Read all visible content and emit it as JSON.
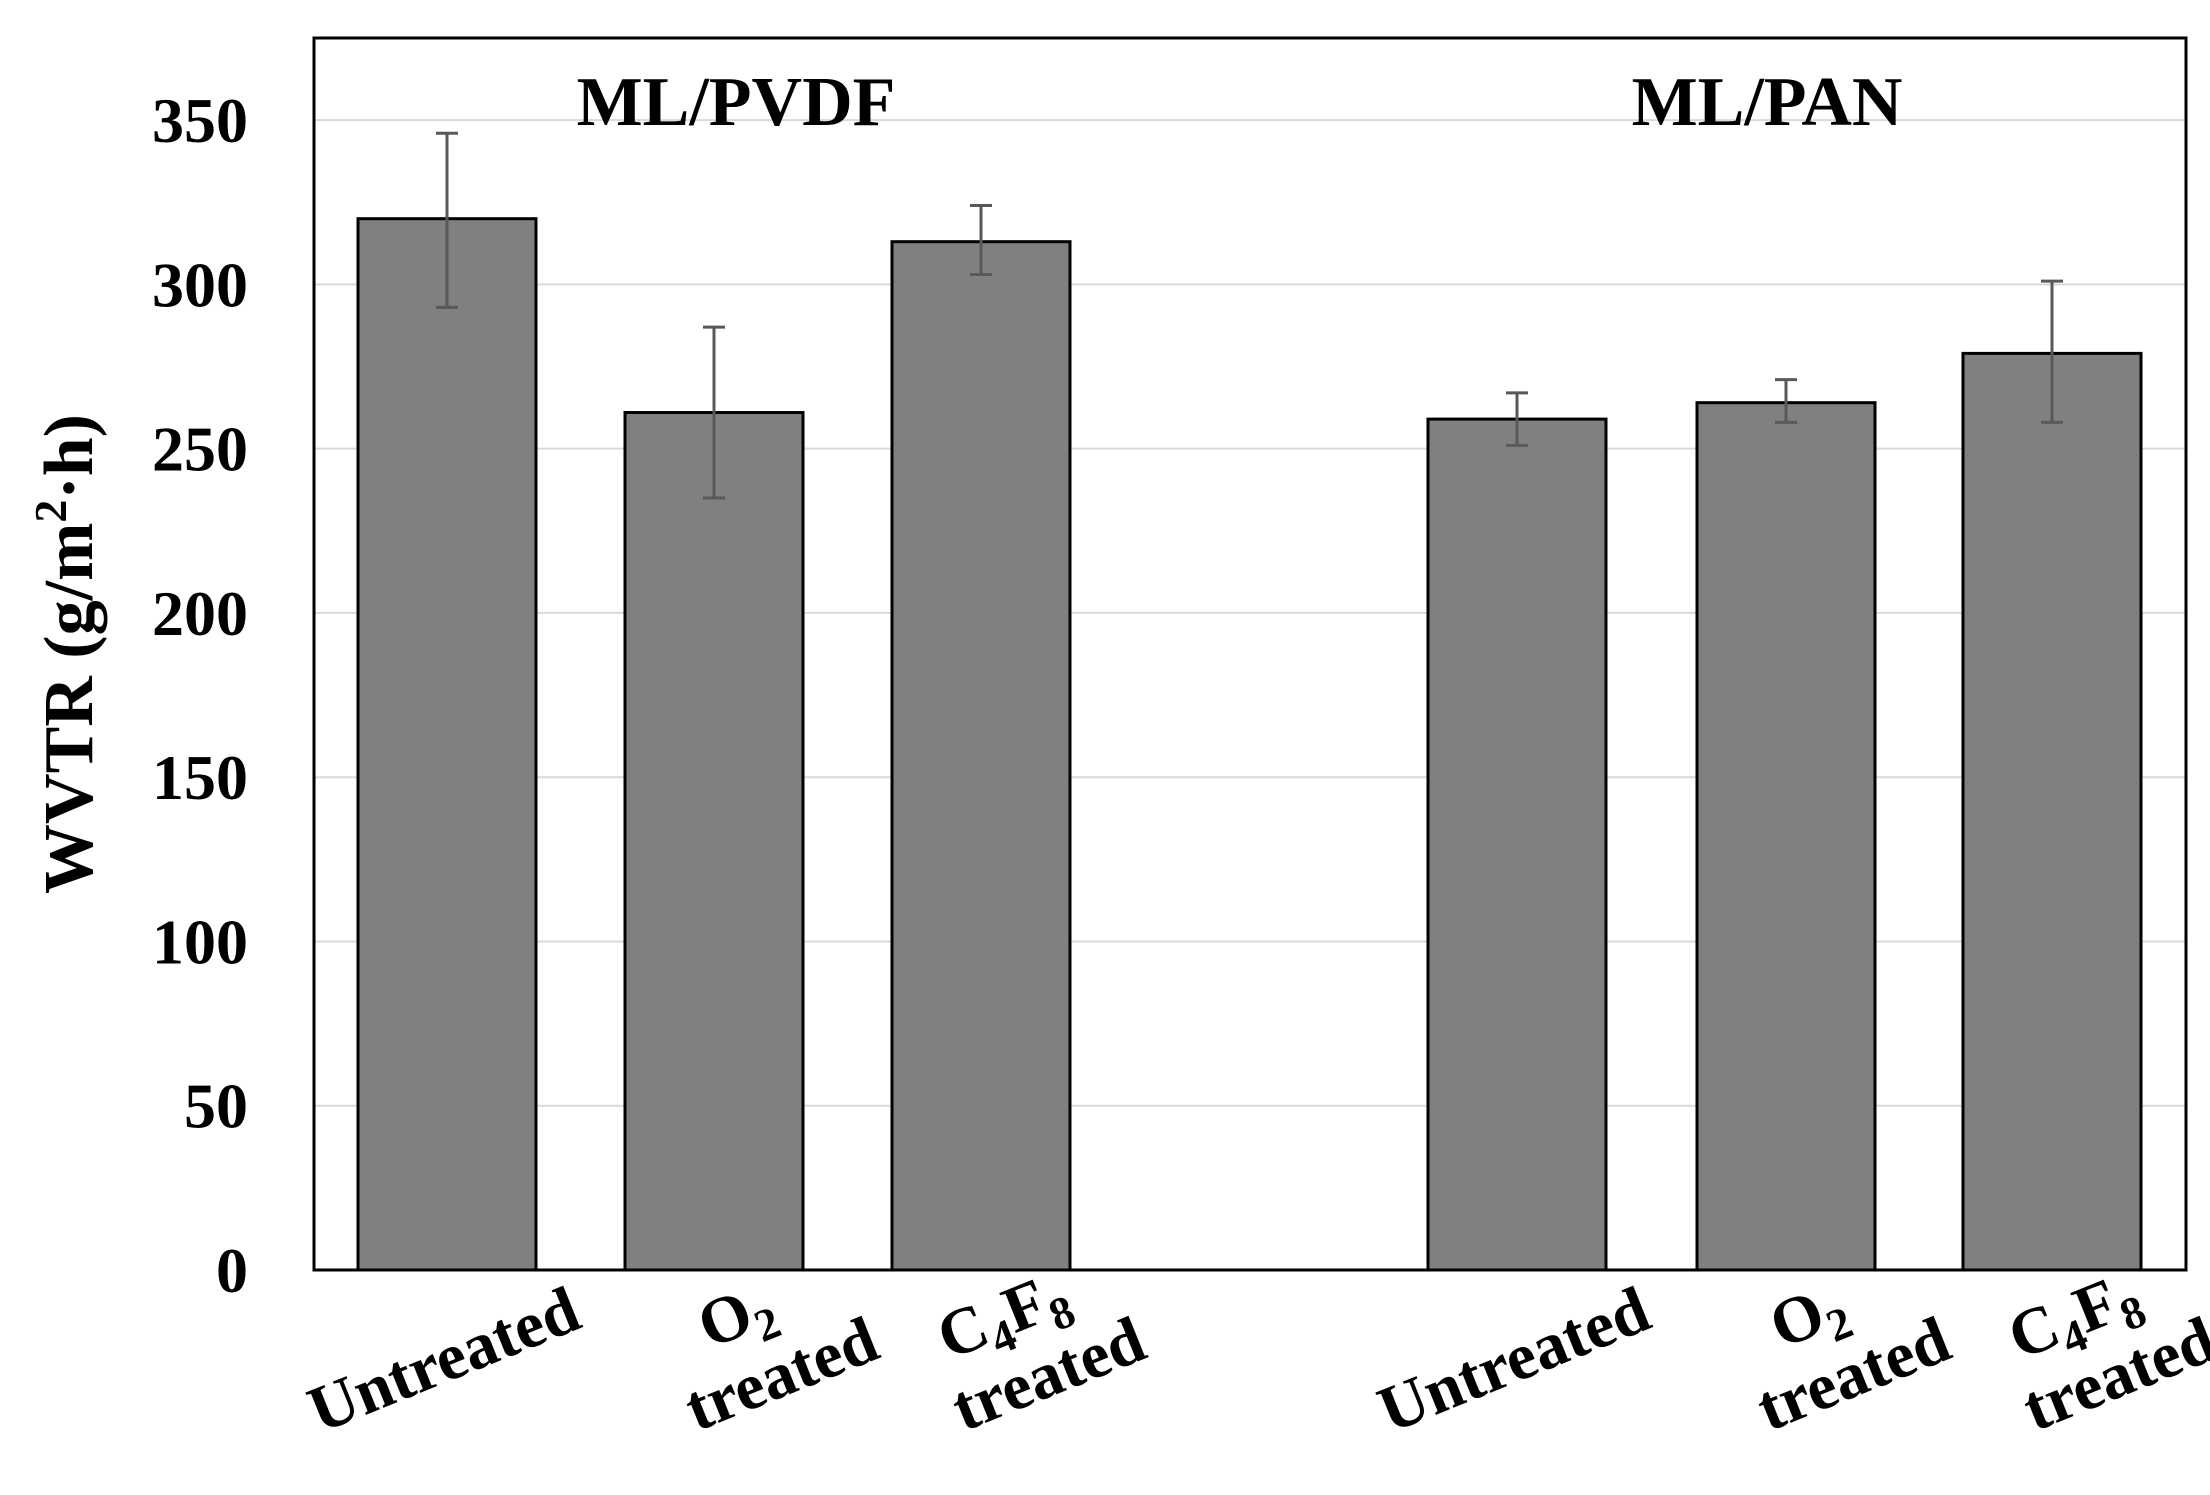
{
  "chart_data": {
    "type": "bar",
    "title": "",
    "ylabel": "WVTR (g/m²·h)",
    "ylabel_parts": {
      "pre": "WVTR (g/m",
      "sup": "2",
      "post": "·h)"
    },
    "ylim": [
      0,
      375
    ],
    "yticks": [
      0,
      50,
      100,
      150,
      200,
      250,
      300,
      350
    ],
    "grid": true,
    "error_bars": true,
    "bar_color": "#808080",
    "groups": [
      {
        "name": "ML/PVDF",
        "bars": [
          {
            "label": [
              {
                "t": "Untreated"
              }
            ],
            "value": 320,
            "err_low": 293,
            "err_high": 346
          },
          {
            "label": [
              {
                "t": "O"
              },
              {
                "t": "2",
                "sub": true
              },
              {
                "t": "treated",
                "br": true
              }
            ],
            "value": 261,
            "err_low": 235,
            "err_high": 287
          },
          {
            "label": [
              {
                "t": "C"
              },
              {
                "t": "4",
                "sub": true
              },
              {
                "t": "F"
              },
              {
                "t": "8",
                "sub": true
              },
              {
                "t": "treated",
                "br": true
              }
            ],
            "value": 313,
            "err_low": 303,
            "err_high": 324
          }
        ]
      },
      {
        "name": "ML/PAN",
        "bars": [
          {
            "label": [
              {
                "t": "Untreated"
              }
            ],
            "value": 259,
            "err_low": 251,
            "err_high": 267
          },
          {
            "label": [
              {
                "t": "O"
              },
              {
                "t": "2",
                "sub": true
              },
              {
                "t": "treated",
                "br": true
              }
            ],
            "value": 264,
            "err_low": 258,
            "err_high": 271
          },
          {
            "label": [
              {
                "t": "C"
              },
              {
                "t": "4",
                "sub": true
              },
              {
                "t": "F"
              },
              {
                "t": "8",
                "sub": true
              },
              {
                "t": "treated",
                "br": true
              }
            ],
            "value": 279,
            "err_low": 258,
            "err_high": 301
          }
        ]
      }
    ]
  }
}
